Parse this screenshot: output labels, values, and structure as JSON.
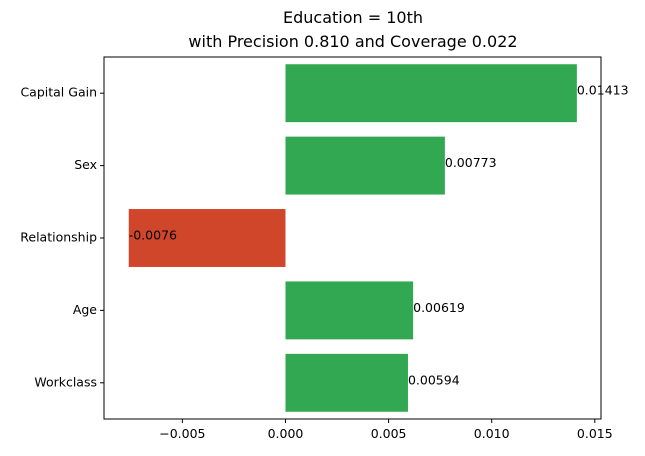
{
  "chart_data": {
    "type": "bar",
    "orientation": "horizontal",
    "title": "Education = 10th",
    "subtitle": "with Precision 0.810 and Coverage 0.022",
    "categories": [
      "Capital Gain",
      "Sex",
      "Relationship",
      "Age",
      "Workclass"
    ],
    "values": [
      0.01413,
      0.00773,
      -0.0076,
      0.00619,
      0.00594
    ],
    "value_labels": [
      "0.01413",
      "0.00773",
      "-0.0076",
      "0.00619",
      "0.00594"
    ],
    "xlim": [
      -0.0088,
      0.0153
    ],
    "xticks": [
      -0.005,
      0.0,
      0.005,
      0.01,
      0.015
    ],
    "xtick_labels": [
      "−0.005",
      "0.000",
      "0.005",
      "0.010",
      "0.015"
    ],
    "xlabel": "",
    "ylabel": "",
    "grid": false,
    "colors": {
      "positive": "#33a852",
      "negative": "#d0462b"
    }
  }
}
